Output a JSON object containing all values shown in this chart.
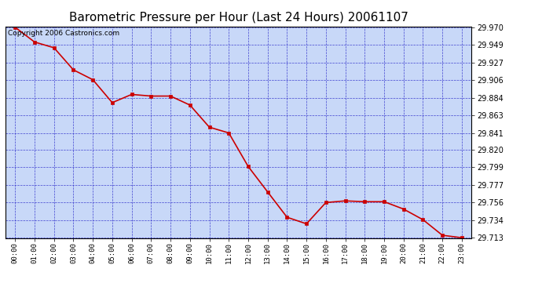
{
  "title": "Barometric Pressure per Hour (Last 24 Hours) 20061107",
  "copyright": "Copyright 2006 Castronics.com",
  "hours": [
    0,
    1,
    2,
    3,
    4,
    5,
    6,
    7,
    8,
    9,
    10,
    11,
    12,
    13,
    14,
    15,
    16,
    17,
    18,
    19,
    20,
    21,
    22,
    23
  ],
  "x_labels": [
    "00:00",
    "01:00",
    "02:00",
    "03:00",
    "04:00",
    "05:00",
    "06:00",
    "07:00",
    "08:00",
    "09:00",
    "10:00",
    "11:00",
    "12:00",
    "13:00",
    "14:00",
    "15:00",
    "16:00",
    "17:00",
    "18:00",
    "19:00",
    "20:00",
    "21:00",
    "22:00",
    "23:00"
  ],
  "pressure": [
    29.97,
    29.952,
    29.945,
    29.918,
    29.906,
    29.878,
    29.888,
    29.886,
    29.886,
    29.875,
    29.848,
    29.841,
    29.8,
    29.769,
    29.738,
    29.73,
    29.756,
    29.758,
    29.757,
    29.757,
    29.748,
    29.735,
    29.716,
    29.713
  ],
  "ylim_min": 29.713,
  "ylim_max": 29.97,
  "yticks": [
    29.713,
    29.734,
    29.756,
    29.777,
    29.799,
    29.82,
    29.841,
    29.863,
    29.884,
    29.906,
    29.927,
    29.949,
    29.97
  ],
  "line_color": "#cc0000",
  "marker_color": "#cc0000",
  "bg_color": "#c8d8f8",
  "plot_bg_color": "#c8d8f8",
  "grid_color": "#3333cc",
  "title_fontsize": 11,
  "copyright_fontsize": 6.5
}
